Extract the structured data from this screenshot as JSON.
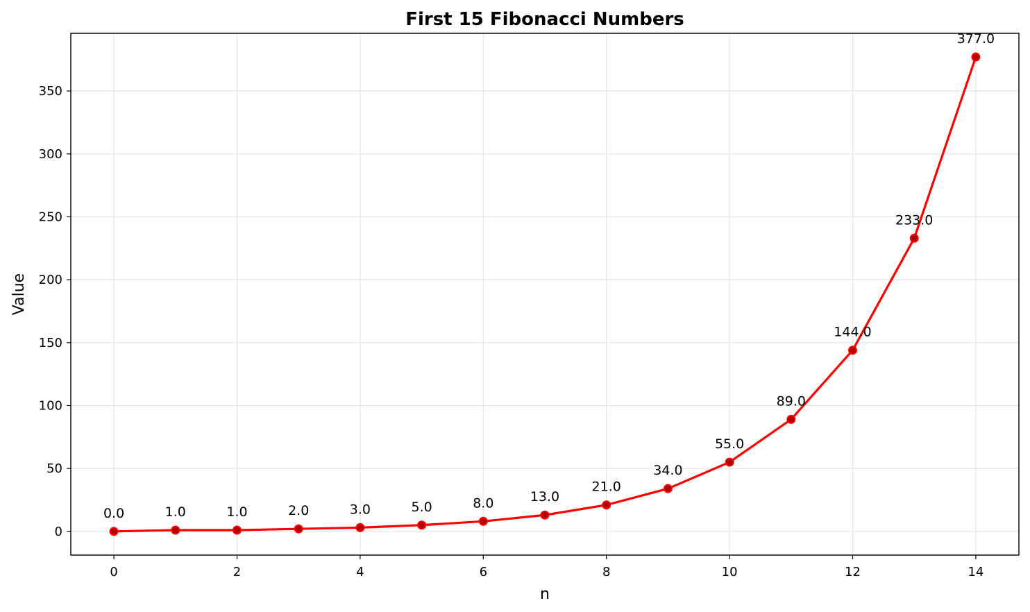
{
  "chart_data": {
    "type": "line",
    "title": "First 15 Fibonacci Numbers",
    "xlabel": "n",
    "ylabel": "Value",
    "x": [
      0,
      1,
      2,
      3,
      4,
      5,
      6,
      7,
      8,
      9,
      10,
      11,
      12,
      13,
      14
    ],
    "series": [
      {
        "values": [
          0,
          1,
          1,
          2,
          3,
          5,
          8,
          13,
          21,
          34,
          55,
          89,
          144,
          233,
          377
        ],
        "color": "#ff0000",
        "marker_color": "#b00000"
      }
    ],
    "data_labels": [
      "0.0",
      "1.0",
      "1.0",
      "2.0",
      "3.0",
      "5.0",
      "8.0",
      "13.0",
      "21.0",
      "34.0",
      "55.0",
      "89.0",
      "144.0",
      "233.0",
      "377.0"
    ],
    "xlim": [
      -0.7,
      14.7
    ],
    "ylim": [
      -18.85,
      395.85
    ],
    "xticks": [
      0,
      2,
      4,
      6,
      8,
      10,
      12,
      14
    ],
    "xtick_labels": [
      "0",
      "2",
      "4",
      "6",
      "8",
      "10",
      "12",
      "14"
    ],
    "yticks": [
      0,
      50,
      100,
      150,
      200,
      250,
      300,
      350
    ],
    "ytick_labels": [
      "0",
      "50",
      "100",
      "150",
      "200",
      "250",
      "300",
      "350"
    ],
    "grid": true,
    "legend": false
  }
}
